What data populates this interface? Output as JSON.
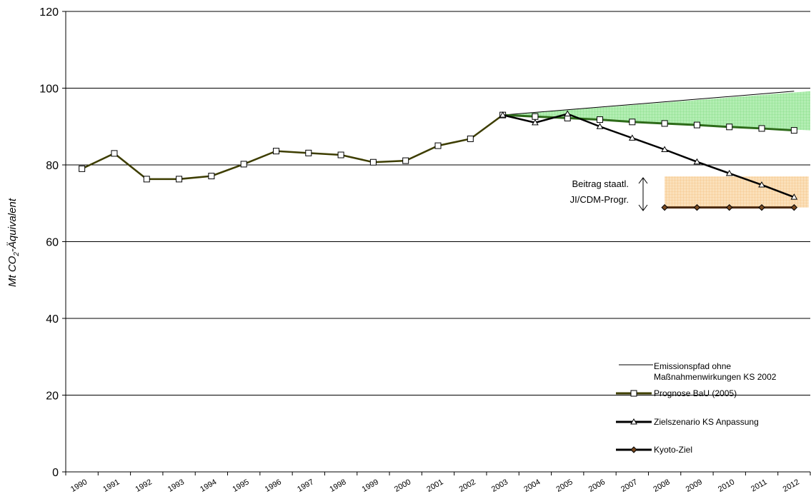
{
  "chart_data": {
    "type": "line",
    "ylabel_main": "Mt CO",
    "ylabel_sub": "2",
    "ylabel_rest": "-Äquivalent",
    "ylim": [
      0,
      120
    ],
    "yticks": [
      0,
      20,
      40,
      60,
      80,
      100,
      120
    ],
    "grid": true,
    "legend_position": "bottom-right",
    "categories": [
      "1990",
      "1991",
      "1992",
      "1993",
      "1994",
      "1995",
      "1996",
      "1997",
      "1998",
      "1999",
      "2000",
      "2001",
      "2002",
      "2003",
      "2004",
      "2005",
      "2006",
      "2007",
      "2008",
      "2009",
      "2010",
      "2011",
      "2012"
    ],
    "series": [
      {
        "name": "Emissionspfad ohne Maßnahmenwirkungen KS 2002",
        "name_lines": [
          "Emissionspfad ohne",
          "Maßnahmenwirkungen KS 2002"
        ],
        "style": "thin-line",
        "color": "#000000",
        "x": [
          "2003",
          "2012"
        ],
        "values": [
          93,
          99.2
        ]
      },
      {
        "name": "Prognose BaU (2005)",
        "style": "square",
        "color": "#3d3d00",
        "color_later": "#2e6b1a",
        "x": [
          "1990",
          "1991",
          "1992",
          "1993",
          "1994",
          "1995",
          "1996",
          "1997",
          "1998",
          "1999",
          "2000",
          "2001",
          "2002",
          "2003",
          "2004",
          "2005",
          "2006",
          "2007",
          "2008",
          "2009",
          "2010",
          "2011",
          "2012"
        ],
        "values": [
          79,
          83,
          76.3,
          76.3,
          77.1,
          80.2,
          83.6,
          83.1,
          82.6,
          80.7,
          81.1,
          85,
          86.8,
          93,
          92.6,
          92.2,
          91.8,
          91.2,
          90.8,
          90.4,
          89.9,
          89.5,
          89.0
        ]
      },
      {
        "name": "Zielszenario KS Anpassung",
        "style": "triangle",
        "color": "#000000",
        "x": [
          "2003",
          "2004",
          "2005",
          "2006",
          "2007",
          "2008",
          "2009",
          "2010",
          "2011",
          "2012"
        ],
        "values": [
          93,
          91,
          93.3,
          90,
          87,
          84,
          80.8,
          77.8,
          74.8,
          71.6
        ]
      },
      {
        "name": "Kyoto-Ziel",
        "style": "diamond",
        "color": "#4a2a10",
        "x": [
          "2008",
          "2009",
          "2010",
          "2011",
          "2012"
        ],
        "values": [
          68.9,
          68.9,
          68.9,
          68.9,
          68.9
        ]
      }
    ],
    "shaded_areas": [
      {
        "name": "green-gap",
        "color": "#7fdc7f",
        "from_x": "2003",
        "to_x": "2012",
        "upper": [
          93,
          99.2
        ],
        "lower": [
          93,
          89.0
        ]
      },
      {
        "name": "orange-jicdm",
        "color": "#f7c98c",
        "from_x": "2008",
        "to_x": "2012",
        "top": 77,
        "bottom": 68.9
      }
    ],
    "annotation": {
      "lines": [
        "Beitrag staatl.",
        "JI/CDM-Progr."
      ]
    }
  }
}
